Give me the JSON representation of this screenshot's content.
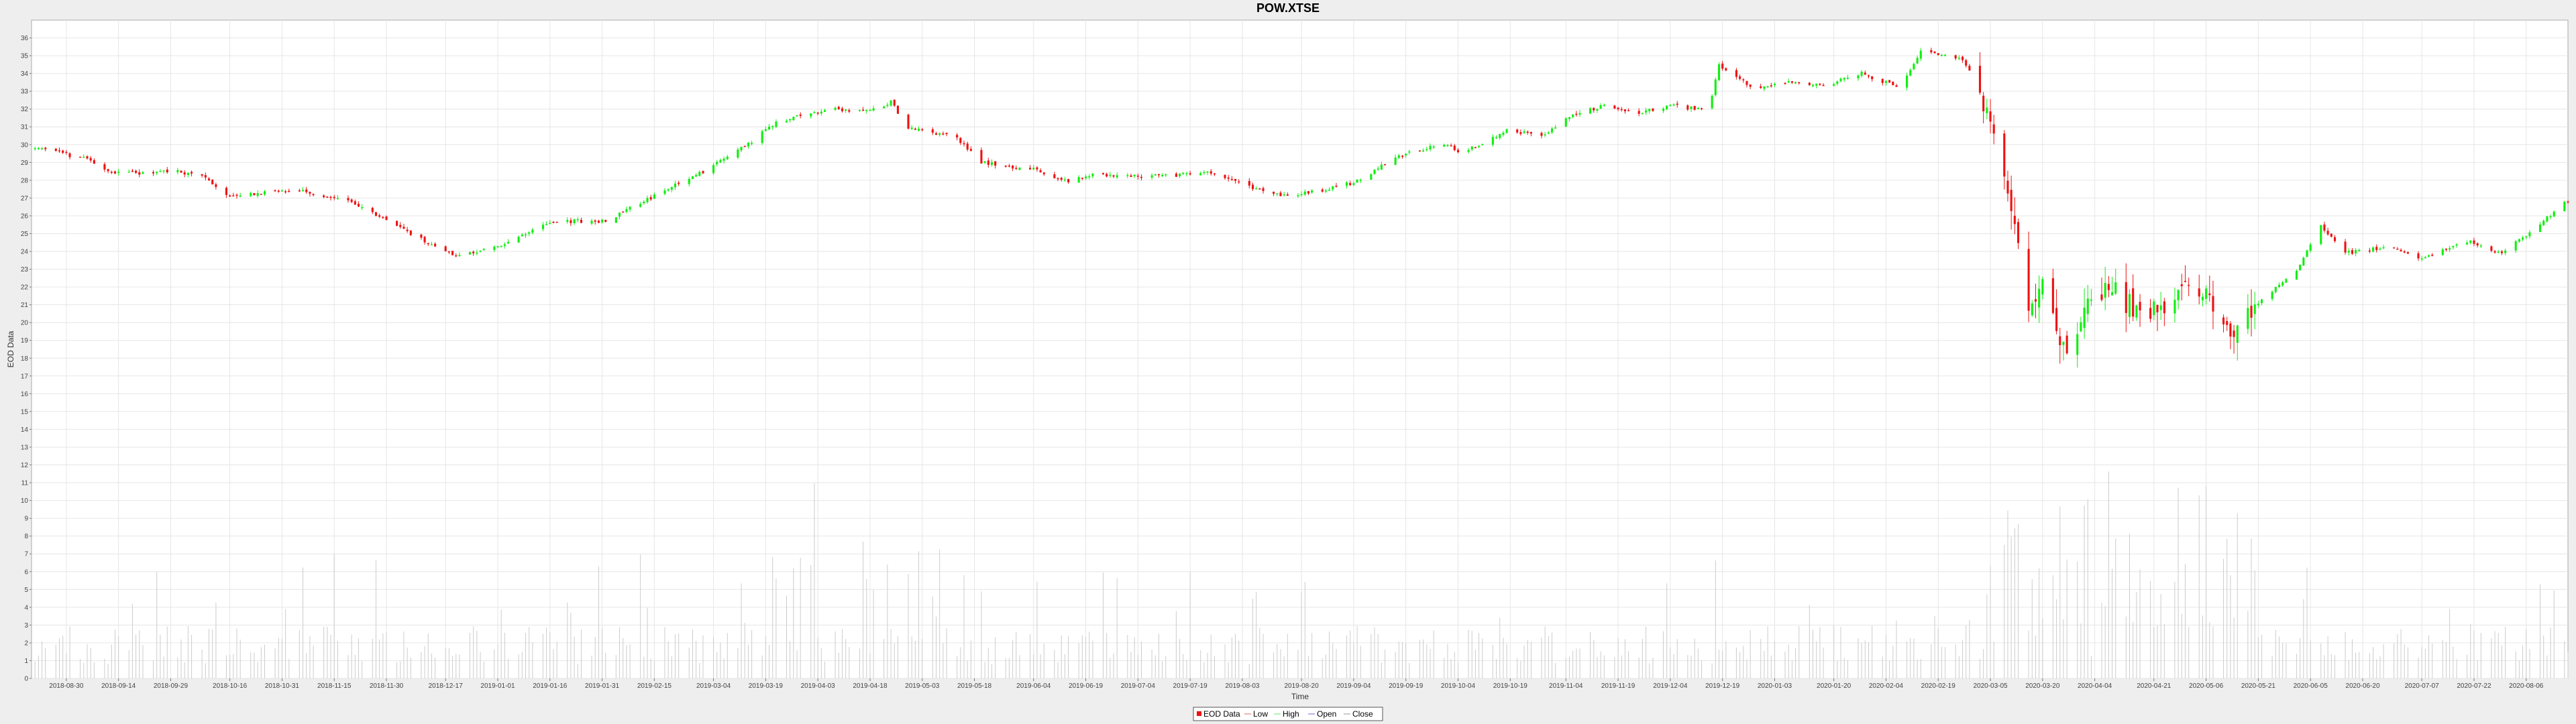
{
  "chart_data": {
    "type": "candlestick",
    "title": "POW.XTSE",
    "xlabel": "Time",
    "ylabel": "EOD Data",
    "ylim": [
      0,
      37
    ],
    "yticks": [
      0,
      1,
      2,
      3,
      4,
      5,
      6,
      7,
      8,
      9,
      10,
      11,
      12,
      13,
      14,
      15,
      16,
      17,
      18,
      19,
      20,
      21,
      22,
      23,
      24,
      25,
      26,
      27,
      28,
      29,
      30,
      31,
      32,
      33,
      34,
      35,
      36
    ],
    "x_range": [
      "2018-08-20",
      "2020-08-18"
    ],
    "xticks": [
      "2018-08-30",
      "2018-09-14",
      "2018-09-29",
      "2018-10-16",
      "2018-10-31",
      "2018-11-15",
      "2018-11-30",
      "2018-12-17",
      "2019-01-01",
      "2019-01-16",
      "2019-01-31",
      "2019-02-15",
      "2019-03-04",
      "2019-03-19",
      "2019-04-03",
      "2019-04-18",
      "2019-05-03",
      "2019-05-18",
      "2019-06-04",
      "2019-06-19",
      "2019-07-04",
      "2019-07-19",
      "2019-08-03",
      "2019-08-20",
      "2019-09-04",
      "2019-09-19",
      "2019-10-04",
      "2019-10-19",
      "2019-11-04",
      "2019-11-19",
      "2019-12-04",
      "2019-12-19",
      "2020-01-03",
      "2020-01-20",
      "2020-02-04",
      "2020-02-19",
      "2020-03-05",
      "2020-03-20",
      "2020-04-04",
      "2020-04-21",
      "2020-05-06",
      "2020-05-21",
      "2020-06-05",
      "2020-06-20",
      "2020-07-07",
      "2020-07-22",
      "2020-08-06"
    ],
    "grid": true,
    "legend_placement": "bottom-center",
    "legend": [
      "EOD Data",
      "Low",
      "High",
      "Open",
      "Close"
    ],
    "price_path": [
      [
        "2018-08-21",
        29.8
      ],
      [
        "2018-09-05",
        29.2
      ],
      [
        "2018-09-10",
        28.5
      ],
      [
        "2018-09-20",
        28.4
      ],
      [
        "2018-09-30",
        28.5
      ],
      [
        "2018-10-08",
        28.2
      ],
      [
        "2018-10-16",
        27.0
      ],
      [
        "2018-10-26",
        27.3
      ],
      [
        "2018-11-06",
        27.4
      ],
      [
        "2018-11-20",
        26.8
      ],
      [
        "2018-12-05",
        25.2
      ],
      [
        "2018-12-20",
        23.7
      ],
      [
        "2019-01-01",
        24.3
      ],
      [
        "2019-01-16",
        25.7
      ],
      [
        "2019-02-01",
        25.7
      ],
      [
        "2019-02-15",
        27.1
      ],
      [
        "2019-03-01",
        28.5
      ],
      [
        "2019-03-15",
        30.2
      ],
      [
        "2019-03-22",
        31.3
      ],
      [
        "2019-04-05",
        32.0
      ],
      [
        "2019-04-18",
        31.9
      ],
      [
        "2019-04-24",
        32.4
      ],
      [
        "2019-04-29",
        30.9
      ],
      [
        "2019-05-12",
        30.5
      ],
      [
        "2019-05-20",
        29.0
      ],
      [
        "2019-06-04",
        28.6
      ],
      [
        "2019-06-14",
        27.9
      ],
      [
        "2019-06-20",
        28.3
      ],
      [
        "2019-07-05",
        28.2
      ],
      [
        "2019-07-24",
        28.4
      ],
      [
        "2019-08-06",
        27.6
      ],
      [
        "2019-08-15",
        27.1
      ],
      [
        "2019-08-28",
        27.5
      ],
      [
        "2019-09-06",
        28.0
      ],
      [
        "2019-09-16",
        29.3
      ],
      [
        "2019-09-30",
        30.1
      ],
      [
        "2019-10-05",
        29.5
      ],
      [
        "2019-10-18",
        30.8
      ],
      [
        "2019-10-28",
        30.5
      ],
      [
        "2019-11-04",
        31.5
      ],
      [
        "2019-11-15",
        32.2
      ],
      [
        "2019-11-25",
        31.8
      ],
      [
        "2019-12-05",
        32.2
      ],
      [
        "2019-12-15",
        31.9
      ],
      [
        "2019-12-18",
        34.5
      ],
      [
        "2019-12-28",
        33.2
      ],
      [
        "2020-01-08",
        33.5
      ],
      [
        "2020-01-17",
        33.3
      ],
      [
        "2020-01-28",
        34.0
      ],
      [
        "2020-02-08",
        33.2
      ],
      [
        "2020-02-14",
        35.2
      ],
      [
        "2020-02-26",
        34.8
      ],
      [
        "2020-03-02",
        33.0
      ],
      [
        "2020-03-06",
        30.0
      ],
      [
        "2020-03-11",
        26.5
      ],
      [
        "2020-03-16",
        20.5
      ],
      [
        "2020-03-20",
        22.5
      ],
      [
        "2020-03-24",
        19.0
      ],
      [
        "2020-03-27",
        18.5
      ],
      [
        "2020-04-02",
        21.5
      ],
      [
        "2020-04-10",
        21.8
      ],
      [
        "2020-04-17",
        20.3
      ],
      [
        "2020-04-24",
        20.6
      ],
      [
        "2020-05-01",
        22.0
      ],
      [
        "2020-05-08",
        21.3
      ],
      [
        "2020-05-15",
        19.3
      ],
      [
        "2020-05-20",
        21.0
      ],
      [
        "2020-06-01",
        22.8
      ],
      [
        "2020-06-08",
        25.5
      ],
      [
        "2020-06-15",
        23.9
      ],
      [
        "2020-06-28",
        24.3
      ],
      [
        "2020-07-07",
        23.6
      ],
      [
        "2020-07-20",
        24.6
      ],
      [
        "2020-07-30",
        23.9
      ],
      [
        "2020-08-10",
        25.5
      ],
      [
        "2020-08-17",
        26.8
      ]
    ],
    "volume_scale_max": 17
  },
  "colors": {
    "up": "#11ee11",
    "down": "#ee1111",
    "volume": "#cccccc",
    "grid": "#e6e6e6",
    "plot_bg": "#ffffff",
    "page_bg": "#eeeeee"
  }
}
